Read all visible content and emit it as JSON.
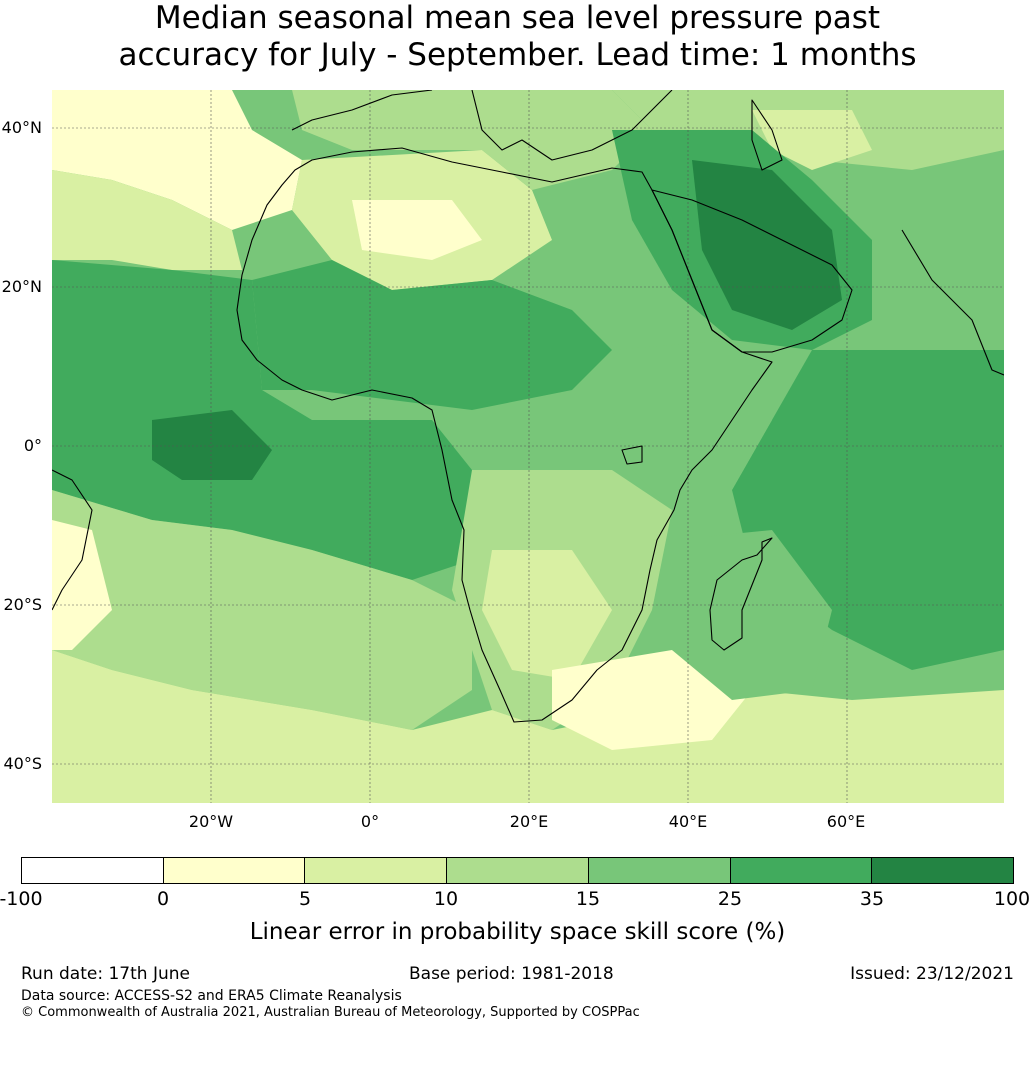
{
  "title": {
    "line1": "Median seasonal mean sea level pressure past",
    "line2": "accuracy for July - September. Lead time: 1 months"
  },
  "map": {
    "lat_labels": [
      "40°N",
      "20°N",
      "0°",
      "20°S",
      "40°S"
    ],
    "lon_labels": [
      "20°W",
      "0°",
      "20°E",
      "40°E",
      "60°E"
    ],
    "gridline_color": "#555555",
    "coastline_color": "#000000"
  },
  "colorbar": {
    "ticks": [
      "-100",
      "0",
      "5",
      "10",
      "15",
      "25",
      "35",
      "100"
    ],
    "colors": [
      "#ffffff",
      "#ffffcc",
      "#d9f0a3",
      "#addd8e",
      "#78c679",
      "#41ab5d",
      "#238443"
    ],
    "label": "Linear error in probability space skill score (%)"
  },
  "footer": {
    "run_date": "Run date: 17th June",
    "base_period": "Base period: 1981-2018",
    "issued": "Issued: 23/12/2021",
    "data_source": "Data source: ACCESS-S2 and ERA5 Climate Reanalysis",
    "copyright": "© Commonwealth of Australia 2021, Australian Bureau of Meteorology, Supported by COSPPac"
  }
}
